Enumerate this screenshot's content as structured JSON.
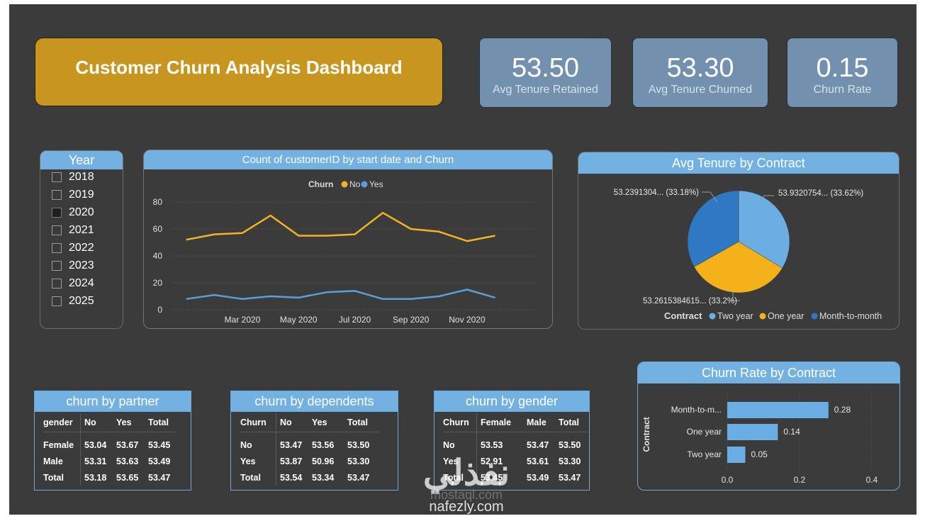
{
  "dashboard": {
    "title": "Customer Churn Analysis Dashboard",
    "kpis": [
      {
        "value": "53.50",
        "label": "Avg Tenure Retained"
      },
      {
        "value": "53.30",
        "label": "Avg Tenure Churned"
      },
      {
        "value": "0.15",
        "label": "Churn Rate"
      }
    ]
  },
  "year_slicer": {
    "title": "Year",
    "items": [
      {
        "label": "2018",
        "checked": false
      },
      {
        "label": "2019",
        "checked": false
      },
      {
        "label": "2020",
        "checked": true
      },
      {
        "label": "2021",
        "checked": false
      },
      {
        "label": "2022",
        "checked": false
      },
      {
        "label": "2023",
        "checked": false
      },
      {
        "label": "2024",
        "checked": false
      },
      {
        "label": "2025",
        "checked": false
      }
    ]
  },
  "colors": {
    "no": "#f6b221",
    "yes": "#5c9fd8",
    "two_year": "#6aaee3",
    "one_year": "#f5b11a",
    "month_to_month": "#2f78c4",
    "bar": "#6aaee3"
  },
  "chart_data": [
    {
      "type": "line",
      "title": "Count of customerID by start date and Churn",
      "legend_title": "Churn",
      "x_ticks": [
        "Mar 2020",
        "May 2020",
        "Jul 2020",
        "Sep 2020",
        "Nov 2020"
      ],
      "y_ticks": [
        "80",
        "60",
        "40",
        "20",
        "0"
      ],
      "ylim": [
        0,
        80
      ],
      "x_months": [
        1,
        2,
        3,
        4,
        5,
        6,
        7,
        8,
        9,
        10,
        11,
        12,
        13
      ],
      "series": [
        {
          "name": "No",
          "values": [
            52,
            56,
            57,
            70,
            55,
            55,
            56,
            72,
            60,
            58,
            51,
            55,
            null
          ]
        },
        {
          "name": "Yes",
          "values": [
            8,
            11,
            8,
            10,
            9,
            13,
            14,
            8,
            8,
            10,
            15,
            9,
            null
          ]
        }
      ],
      "grid": true,
      "legend_position": "top"
    },
    {
      "type": "pie",
      "title": "Avg Tenure by Contract",
      "legend_title": "Contract",
      "slices": [
        {
          "name": "Two year",
          "value": 33.62,
          "label": "53.9320754... (33.62%)"
        },
        {
          "name": "One year",
          "value": 33.2,
          "label": "53.2615384615... (33.2%)"
        },
        {
          "name": "Month-to-month",
          "value": 33.18,
          "label": "53.2391304... (33.18%)"
        }
      ],
      "legend_position": "bottom"
    },
    {
      "type": "bar",
      "title": "Churn Rate by Contract",
      "ylabel": "Contract",
      "categories": [
        "Month-to-m...",
        "One year",
        "Two year"
      ],
      "values": [
        0.28,
        0.14,
        0.05
      ],
      "value_labels": [
        "0.28",
        "0.14",
        "0.05"
      ],
      "x_ticks": [
        "0.0",
        "0.2",
        "0.4"
      ],
      "xlim": [
        0,
        0.4
      ],
      "grid": true
    }
  ],
  "tables": {
    "partner": {
      "title": "churn by partner",
      "header": [
        "gender",
        "No",
        "Yes",
        "Total"
      ],
      "rows": [
        [
          "Female",
          "53.04",
          "53.67",
          "53.45"
        ],
        [
          "Male",
          "53.31",
          "53.63",
          "53.49"
        ],
        [
          "Total",
          "53.18",
          "53.65",
          "53.47"
        ]
      ]
    },
    "dependents": {
      "title": "churn by dependents",
      "header": [
        "Churn",
        "No",
        "Yes",
        "Total"
      ],
      "rows": [
        [
          "No",
          "53.47",
          "53.56",
          "53.50"
        ],
        [
          "Yes",
          "53.87",
          "50.96",
          "53.30"
        ],
        [
          "Total",
          "53.54",
          "53.34",
          "53.47"
        ]
      ]
    },
    "gender": {
      "title": "churn by gender",
      "header": [
        "Churn",
        "Female",
        "Male",
        "Total"
      ],
      "rows": [
        [
          "No",
          "53.53",
          "53.47",
          "53.50"
        ],
        [
          "Yes",
          "52.91",
          "53.61",
          "53.30"
        ],
        [
          "Total",
          "53.45",
          "53.49",
          "53.47"
        ]
      ]
    }
  },
  "watermark": {
    "text": "mostaql.com",
    "text2": "nafezly.com"
  }
}
